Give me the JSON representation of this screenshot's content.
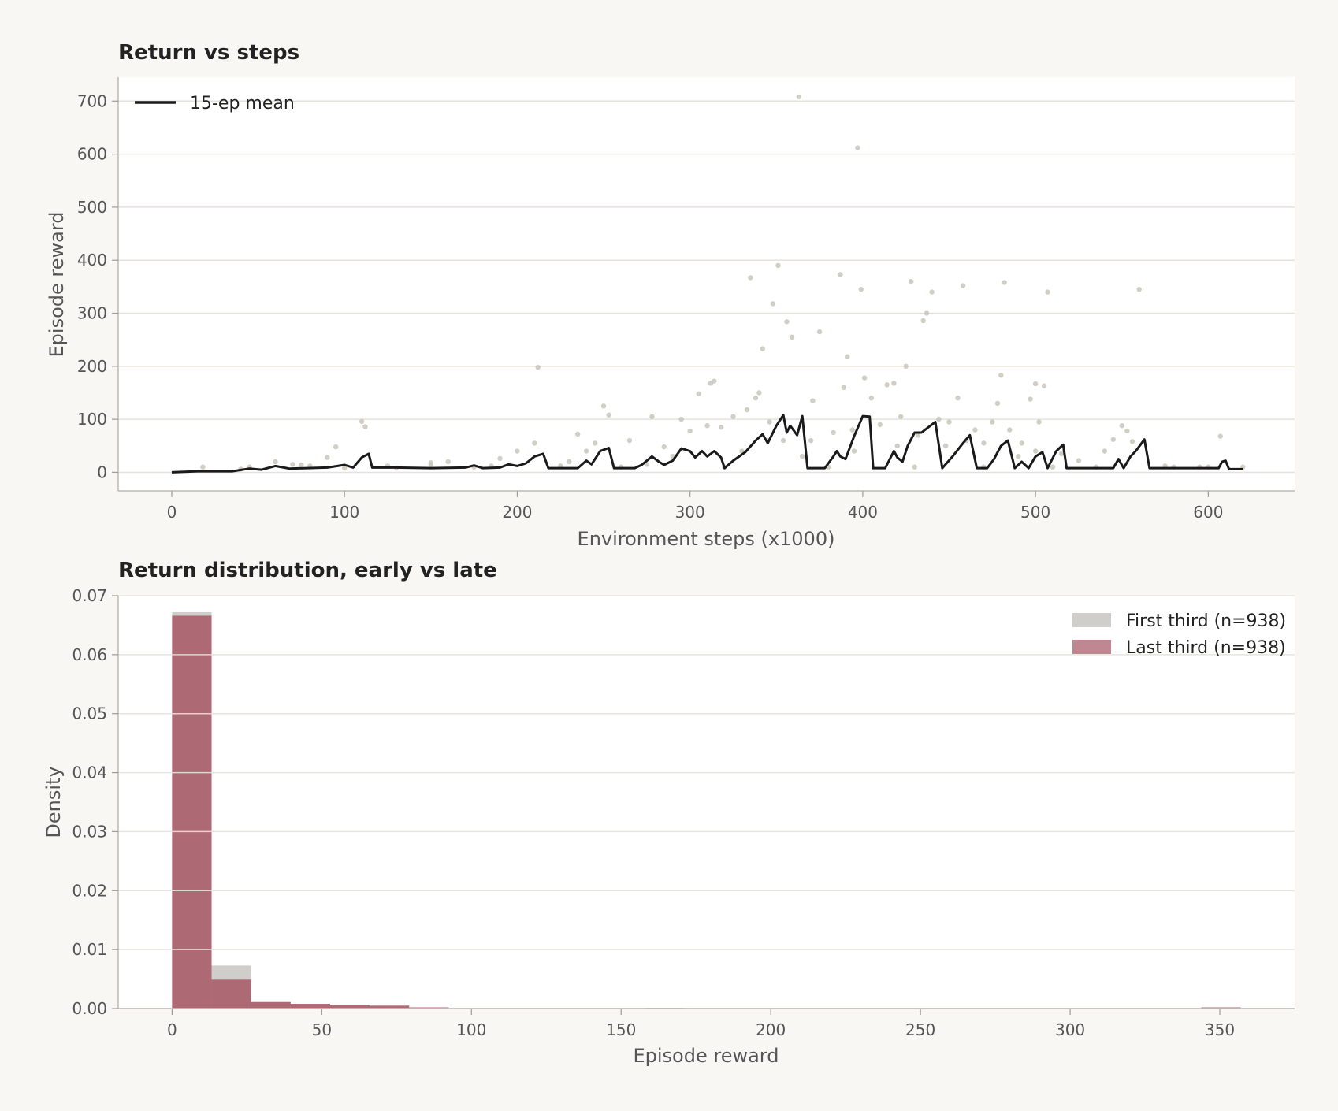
{
  "chart_data": [
    {
      "type": "scatter",
      "title": "Return vs steps",
      "xlabel": "Environment steps (x1000)",
      "ylabel": "Episode reward",
      "xlim": [
        -31,
        650
      ],
      "ylim": [
        -35,
        745
      ],
      "xticks": [
        0,
        100,
        200,
        300,
        400,
        500,
        600
      ],
      "yticks": [
        0,
        100,
        200,
        300,
        400,
        500,
        600,
        700
      ],
      "grid": "horizontal",
      "legend_position": "top-left",
      "legend": [
        "15-ep mean"
      ],
      "colors": {
        "points": "#c9c6bb",
        "line": "#1a1a1a"
      },
      "series": [
        {
          "kind": "points",
          "points": [
            [
              18,
              10
            ],
            [
              45,
              10
            ],
            [
              60,
              20
            ],
            [
              75,
              14
            ],
            [
              90,
              28
            ],
            [
              95,
              48
            ],
            [
              110,
              96
            ],
            [
              112,
              86
            ],
            [
              125,
              12
            ],
            [
              150,
              14
            ],
            [
              175,
              10
            ],
            [
              190,
              26
            ],
            [
              200,
              40
            ],
            [
              210,
              55
            ],
            [
              212,
              198
            ],
            [
              225,
              12
            ],
            [
              235,
              72
            ],
            [
              245,
              55
            ],
            [
              250,
              125
            ],
            [
              253,
              108
            ],
            [
              265,
              60
            ],
            [
              278,
              105
            ],
            [
              285,
              48
            ],
            [
              295,
              100
            ],
            [
              300,
              78
            ],
            [
              305,
              148
            ],
            [
              310,
              88
            ],
            [
              312,
              168
            ],
            [
              314,
              172
            ],
            [
              318,
              85
            ],
            [
              325,
              105
            ],
            [
              333,
              118
            ],
            [
              335,
              367
            ],
            [
              338,
              140
            ],
            [
              340,
              150
            ],
            [
              342,
              233
            ],
            [
              346,
              95
            ],
            [
              348,
              318
            ],
            [
              351,
              390
            ],
            [
              354,
              60
            ],
            [
              356,
              284
            ],
            [
              359,
              255
            ],
            [
              363,
              708
            ],
            [
              371,
              135
            ],
            [
              375,
              265
            ],
            [
              383,
              75
            ],
            [
              387,
              373
            ],
            [
              389,
              160
            ],
            [
              391,
              218
            ],
            [
              394,
              80
            ],
            [
              397,
              612
            ],
            [
              399,
              345
            ],
            [
              401,
              178
            ],
            [
              405,
              140
            ],
            [
              410,
              90
            ],
            [
              414,
              165
            ],
            [
              418,
              168
            ],
            [
              422,
              105
            ],
            [
              425,
              200
            ],
            [
              428,
              360
            ],
            [
              432,
              70
            ],
            [
              435,
              286
            ],
            [
              437,
              300
            ],
            [
              440,
              340
            ],
            [
              444,
              100
            ],
            [
              450,
              95
            ],
            [
              455,
              140
            ],
            [
              458,
              352
            ],
            [
              465,
              80
            ],
            [
              470,
              55
            ],
            [
              475,
              95
            ],
            [
              478,
              130
            ],
            [
              480,
              183
            ],
            [
              482,
              358
            ],
            [
              485,
              80
            ],
            [
              492,
              55
            ],
            [
              497,
              138
            ],
            [
              500,
              167
            ],
            [
              502,
              95
            ],
            [
              505,
              163
            ],
            [
              507,
              340
            ],
            [
              515,
              35
            ],
            [
              525,
              22
            ],
            [
              540,
              40
            ],
            [
              545,
              62
            ],
            [
              550,
              88
            ],
            [
              553,
              78
            ],
            [
              556,
              58
            ],
            [
              560,
              345
            ],
            [
              575,
              12
            ],
            [
              595,
              10
            ],
            [
              607,
              68
            ],
            [
              620,
              10
            ],
            [
              150,
              18
            ],
            [
              130,
              8
            ],
            [
              100,
              8
            ],
            [
              80,
              12
            ],
            [
              40,
              6
            ],
            [
              230,
              20
            ],
            [
              275,
              15
            ],
            [
              330,
              40
            ],
            [
              370,
              60
            ],
            [
              420,
              50
            ],
            [
              460,
              60
            ],
            [
              490,
              30
            ],
            [
              535,
              10
            ],
            [
              580,
              10
            ],
            [
              70,
              15
            ],
            [
              160,
              20
            ],
            [
              185,
              12
            ],
            [
              240,
              40
            ],
            [
              260,
              10
            ],
            [
              290,
              30
            ],
            [
              320,
              10
            ],
            [
              345,
              60
            ],
            [
              365,
              30
            ],
            [
              380,
              10
            ],
            [
              395,
              40
            ],
            [
              430,
              10
            ],
            [
              448,
              50
            ],
            [
              470,
              10
            ],
            [
              500,
              40
            ],
            [
              510,
              10
            ],
            [
              600,
              10
            ]
          ]
        },
        {
          "kind": "line",
          "name": "15-ep mean",
          "points": [
            [
              0,
              0
            ],
            [
              15,
              2
            ],
            [
              35,
              2
            ],
            [
              45,
              7
            ],
            [
              52,
              5
            ],
            [
              60,
              12
            ],
            [
              68,
              7
            ],
            [
              90,
              9
            ],
            [
              100,
              14
            ],
            [
              105,
              9
            ],
            [
              110,
              28
            ],
            [
              114,
              35
            ],
            [
              116,
              9
            ],
            [
              130,
              9
            ],
            [
              150,
              8
            ],
            [
              170,
              9
            ],
            [
              175,
              13
            ],
            [
              180,
              8
            ],
            [
              190,
              9
            ],
            [
              195,
              15
            ],
            [
              200,
              12
            ],
            [
              205,
              17
            ],
            [
              210,
              30
            ],
            [
              215,
              35
            ],
            [
              218,
              8
            ],
            [
              235,
              8
            ],
            [
              240,
              22
            ],
            [
              243,
              15
            ],
            [
              248,
              40
            ],
            [
              253,
              46
            ],
            [
              256,
              8
            ],
            [
              268,
              8
            ],
            [
              272,
              14
            ],
            [
              278,
              30
            ],
            [
              282,
              20
            ],
            [
              285,
              14
            ],
            [
              290,
              22
            ],
            [
              295,
              45
            ],
            [
              300,
              40
            ],
            [
              303,
              28
            ],
            [
              307,
              40
            ],
            [
              310,
              30
            ],
            [
              314,
              40
            ],
            [
              318,
              28
            ],
            [
              320,
              8
            ],
            [
              325,
              22
            ],
            [
              332,
              38
            ],
            [
              338,
              60
            ],
            [
              342,
              72
            ],
            [
              345,
              55
            ],
            [
              350,
              88
            ],
            [
              354,
              108
            ],
            [
              356,
              75
            ],
            [
              358,
              88
            ],
            [
              362,
              70
            ],
            [
              365,
              106
            ],
            [
              368,
              8
            ],
            [
              378,
              8
            ],
            [
              383,
              30
            ],
            [
              385,
              40
            ],
            [
              387,
              30
            ],
            [
              390,
              25
            ],
            [
              395,
              68
            ],
            [
              400,
              106
            ],
            [
              404,
              105
            ],
            [
              406,
              8
            ],
            [
              413,
              8
            ],
            [
              418,
              40
            ],
            [
              420,
              28
            ],
            [
              423,
              20
            ],
            [
              426,
              50
            ],
            [
              430,
              75
            ],
            [
              434,
              75
            ],
            [
              438,
              85
            ],
            [
              442,
              95
            ],
            [
              446,
              8
            ],
            [
              452,
              30
            ],
            [
              458,
              55
            ],
            [
              462,
              70
            ],
            [
              466,
              8
            ],
            [
              472,
              8
            ],
            [
              476,
              25
            ],
            [
              480,
              50
            ],
            [
              484,
              60
            ],
            [
              488,
              8
            ],
            [
              492,
              20
            ],
            [
              496,
              8
            ],
            [
              500,
              30
            ],
            [
              504,
              38
            ],
            [
              507,
              8
            ],
            [
              512,
              40
            ],
            [
              516,
              52
            ],
            [
              518,
              8
            ],
            [
              535,
              8
            ],
            [
              545,
              8
            ],
            [
              548,
              25
            ],
            [
              551,
              8
            ],
            [
              555,
              30
            ],
            [
              558,
              40
            ],
            [
              563,
              62
            ],
            [
              566,
              8
            ],
            [
              600,
              8
            ],
            [
              606,
              8
            ],
            [
              608,
              20
            ],
            [
              610,
              22
            ],
            [
              612,
              6
            ],
            [
              620,
              6
            ]
          ]
        }
      ]
    },
    {
      "type": "bar",
      "subtype": "histogram",
      "title": "Return distribution, early vs late",
      "xlabel": "Episode reward",
      "ylabel": "Density",
      "xlim": [
        -18,
        375
      ],
      "ylim": [
        0,
        0.07
      ],
      "xticks": [
        0,
        50,
        100,
        150,
        200,
        250,
        300,
        350
      ],
      "yticks": [
        "0.00",
        "0.01",
        "0.02",
        "0.03",
        "0.04",
        "0.05",
        "0.06",
        "0.07"
      ],
      "grid": "horizontal",
      "legend_position": "top-right",
      "colors": {
        "first_third": "#d0ceca",
        "last_third": "#a85f6c"
      },
      "series": [
        {
          "name": "First third (n=938)",
          "bins": [
            [
              0,
              13.2,
              0.0672
            ],
            [
              13.2,
              26.4,
              0.0073
            ],
            [
              26.4,
              39.6,
              0.0011
            ],
            [
              39.6,
              52.8,
              0.0007
            ],
            [
              52.8,
              66.0,
              0.0005
            ],
            [
              66.0,
              79.2,
              0.0003
            ],
            [
              79.2,
              92.4,
              0.0002
            ]
          ]
        },
        {
          "name": "Last third (n=938)",
          "bins": [
            [
              0,
              13.2,
              0.0666
            ],
            [
              13.2,
              26.4,
              0.0049
            ],
            [
              26.4,
              39.6,
              0.0011
            ],
            [
              39.6,
              52.8,
              0.0008
            ],
            [
              52.8,
              66.0,
              0.0006
            ],
            [
              66.0,
              79.2,
              0.0005
            ],
            [
              79.2,
              92.4,
              0.0002
            ],
            [
              158,
              171.2,
              0.0001
            ],
            [
              343.8,
              357,
              0.0002
            ]
          ]
        }
      ]
    }
  ]
}
